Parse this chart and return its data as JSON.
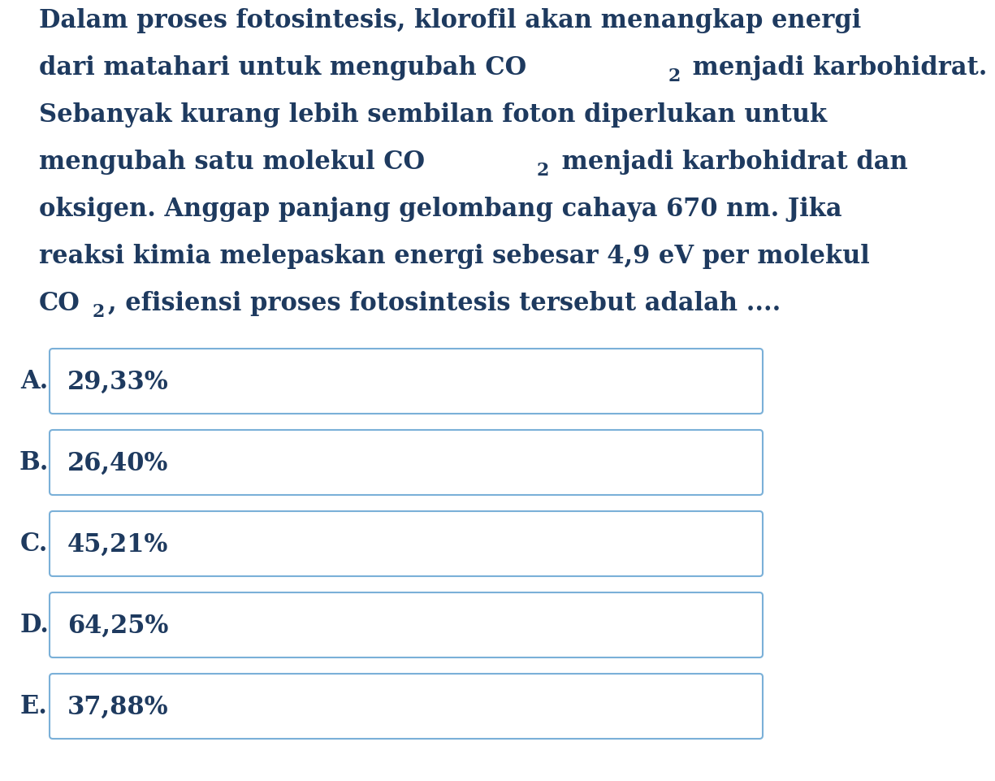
{
  "background_color": "#ffffff",
  "text_color": "#1e3a5f",
  "question_segments": [
    [
      {
        "t": "Dalam proses fotosintesis, klorofil akan menangkap energi",
        "sub": false
      }
    ],
    [
      {
        "t": "dari matahari untuk mengubah CO",
        "sub": false
      },
      {
        "t": "2",
        "sub": true
      },
      {
        "t": " menjadi karbohidrat.",
        "sub": false
      }
    ],
    [
      {
        "t": "Sebanyak kurang lebih sembilan foton diperlukan untuk",
        "sub": false
      }
    ],
    [
      {
        "t": "mengubah satu molekul CO",
        "sub": false
      },
      {
        "t": "2",
        "sub": true
      },
      {
        "t": " menjadi karbohidrat dan",
        "sub": false
      }
    ],
    [
      {
        "t": "oksigen. Anggap panjang gelombang cahaya 670 nm. Jika",
        "sub": false
      }
    ],
    [
      {
        "t": "reaksi kimia melepaskan energi sebesar 4,9 eV per molekul",
        "sub": false
      }
    ],
    [
      {
        "t": "CO",
        "sub": false
      },
      {
        "t": "2",
        "sub": true
      },
      {
        "t": ", efisiensi proses fotosintesis tersebut adalah ....",
        "sub": false
      }
    ]
  ],
  "options": [
    {
      "label": "A.",
      "text": "29,33%"
    },
    {
      "label": "B.",
      "text": "26,40%"
    },
    {
      "label": "C.",
      "text": "45,21%"
    },
    {
      "label": "D.",
      "text": "64,25%"
    },
    {
      "label": "E.",
      "text": "37,88%"
    }
  ],
  "box_border_color": "#7ab0d8",
  "box_face_color": "#ffffff",
  "question_fontsize": 22,
  "option_fontsize": 22,
  "label_fontsize": 22,
  "fig_width": 9.41,
  "fig_height": 9.4
}
